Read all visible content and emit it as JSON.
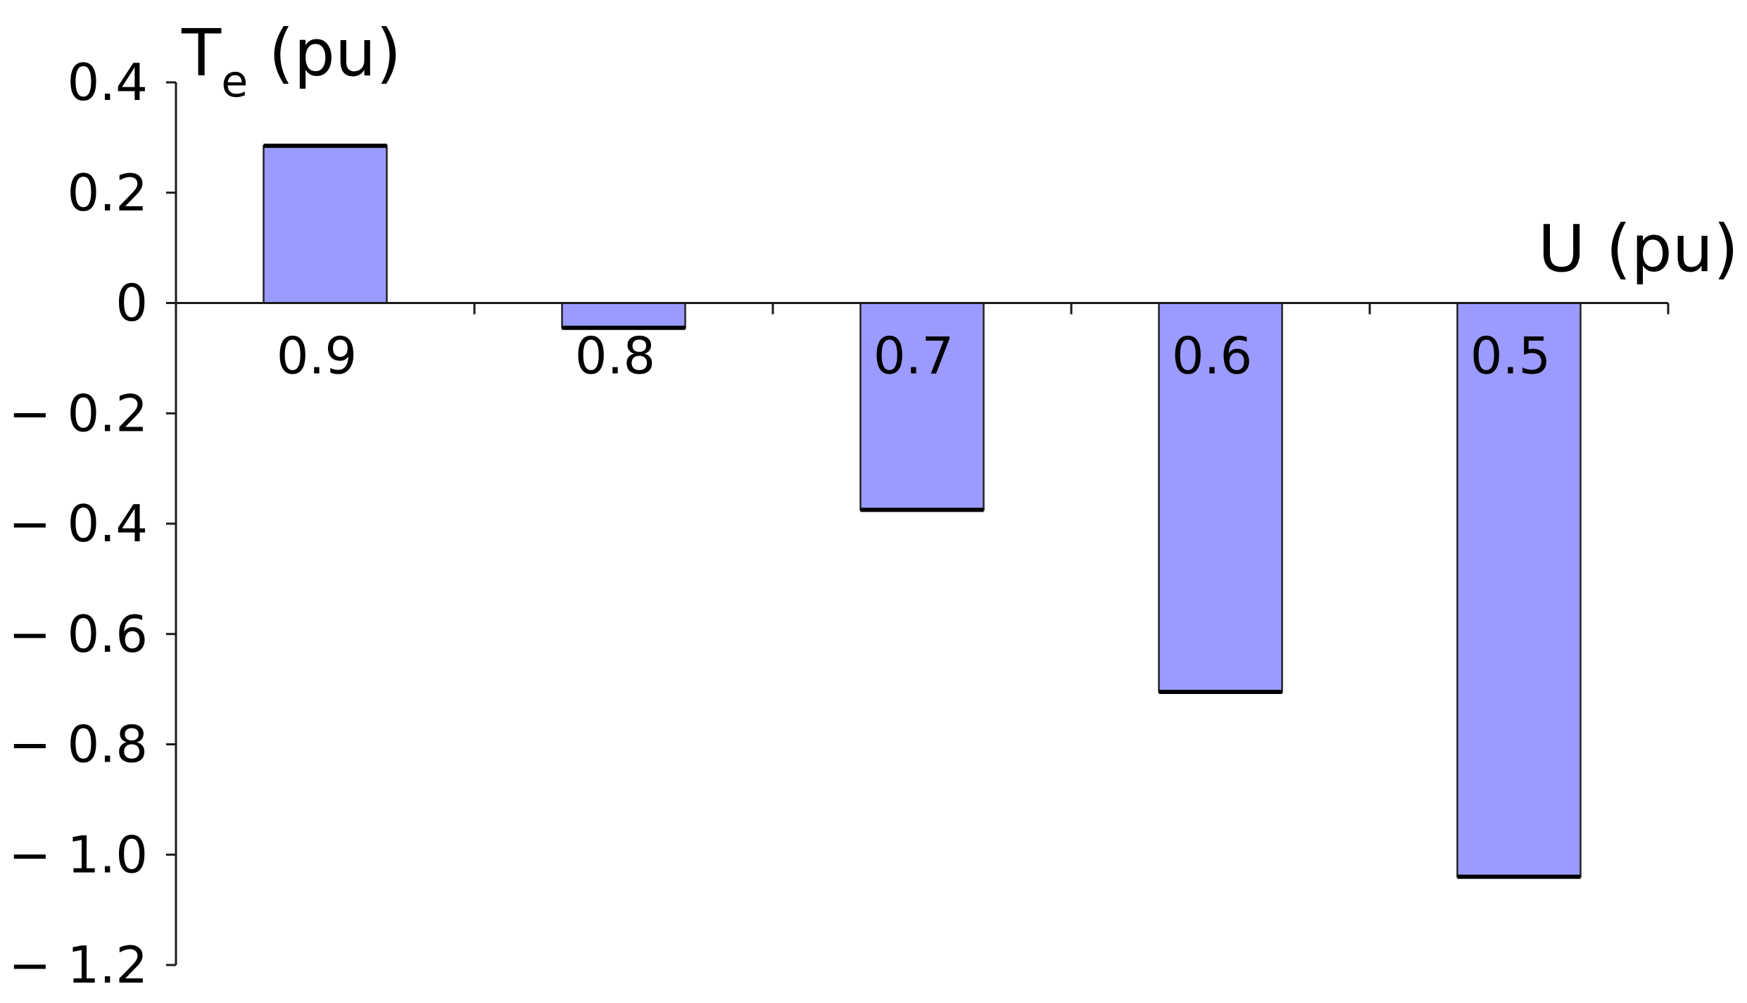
{
  "chart_data": {
    "type": "bar",
    "categories": [
      "0.9",
      "0.8",
      "0.7",
      "0.6",
      "0.5"
    ],
    "values": [
      0.285,
      -0.045,
      -0.375,
      -0.705,
      -1.04
    ],
    "ylabel_main": "T",
    "ylabel_sub": "e",
    "ylabel_unit": " (pu)",
    "xlabel": "U (pu)",
    "ylim": [
      -1.2,
      0.4
    ],
    "yticks": [
      0.4,
      0.2,
      0,
      -0.2,
      -0.4,
      -0.6,
      -0.8,
      -1.0,
      -1.2
    ],
    "ytick_labels": [
      "0.4",
      "0.2",
      "0",
      "− 0.2",
      "− 0.4",
      "− 0.6",
      "− 0.8",
      "− 1.0",
      "− 1.2"
    ],
    "grid": false,
    "colors": {
      "bar_fill": "#9b9bff",
      "bar_edge": "#000000"
    }
  }
}
